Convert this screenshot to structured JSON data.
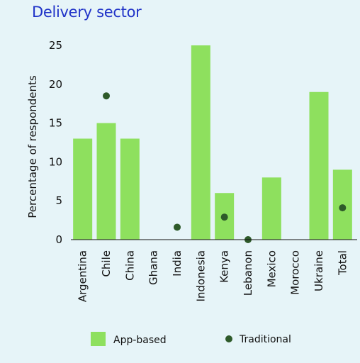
{
  "chart_data": {
    "type": "bar",
    "title": "Delivery sector",
    "xlabel": "",
    "ylabel": "Percentage of respondents",
    "ylim": [
      0,
      25
    ],
    "yticks": [
      0,
      5,
      10,
      15,
      20,
      25
    ],
    "grid": false,
    "legend_position": "bottom",
    "categories": [
      "Argentina",
      "Chile",
      "China",
      "Ghana",
      "India",
      "Indonesia",
      "Kenya",
      "Lebanon",
      "Mexico",
      "Morocco",
      "Ukraine",
      "Total"
    ],
    "series": [
      {
        "name": "App-based",
        "mark": "bar",
        "color": "#8ee05e",
        "values": [
          13,
          15,
          13,
          0,
          0,
          25,
          6,
          0,
          8,
          0,
          19,
          9
        ]
      },
      {
        "name": "Traditional",
        "mark": "dot",
        "color": "#2e5a2a",
        "values": [
          null,
          18.5,
          null,
          null,
          1.6,
          null,
          2.9,
          0,
          null,
          null,
          null,
          4.1
        ]
      }
    ]
  }
}
